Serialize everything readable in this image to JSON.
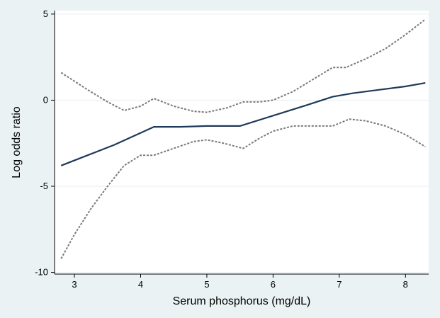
{
  "chart_data": {
    "type": "line",
    "title": "",
    "xlabel": "Serum phosphorus (mg/dL)",
    "ylabel": "Log odds ratio",
    "xlim": [
      2.7,
      8.35
    ],
    "ylim": [
      -10.1,
      5.2
    ],
    "xticks": [
      3,
      4,
      5,
      6,
      7,
      8
    ],
    "yticks": [
      5,
      0,
      -5,
      -10
    ],
    "xtick_labels": [
      "3",
      "4",
      "5",
      "6",
      "7",
      "8"
    ],
    "ytick_labels": [
      "5",
      "0",
      "-5",
      "-10"
    ],
    "grid": "horizontal",
    "legend": "none",
    "series": [
      {
        "role": "estimate",
        "color": "#1f3a5a",
        "style": "solid",
        "x": [
          2.8,
          3.2,
          3.6,
          4.0,
          4.2,
          4.6,
          5.0,
          5.5,
          6.0,
          6.5,
          6.9,
          7.2,
          7.6,
          8.0,
          8.3
        ],
        "y": [
          -3.8,
          -3.2,
          -2.6,
          -1.9,
          -1.55,
          -1.55,
          -1.5,
          -1.5,
          -0.9,
          -0.3,
          0.2,
          0.4,
          0.6,
          0.8,
          1.0
        ]
      },
      {
        "role": "upper-ci",
        "color": "#7a7a7a",
        "style": "dashed",
        "x": [
          2.8,
          3.2,
          3.5,
          3.75,
          4.0,
          4.2,
          4.5,
          4.8,
          5.0,
          5.3,
          5.55,
          5.8,
          6.0,
          6.3,
          6.6,
          6.9,
          7.1,
          7.4,
          7.7,
          8.0,
          8.3
        ],
        "y": [
          1.6,
          0.6,
          -0.1,
          -0.6,
          -0.35,
          0.1,
          -0.35,
          -0.65,
          -0.7,
          -0.45,
          -0.1,
          -0.1,
          0.0,
          0.5,
          1.2,
          1.9,
          1.9,
          2.4,
          3.0,
          3.8,
          4.7
        ]
      },
      {
        "role": "lower-ci",
        "color": "#7a7a7a",
        "style": "dashed",
        "x": [
          2.8,
          3.0,
          3.25,
          3.5,
          3.75,
          4.0,
          4.2,
          4.5,
          4.8,
          5.0,
          5.25,
          5.55,
          5.8,
          6.0,
          6.3,
          6.6,
          6.9,
          7.15,
          7.4,
          7.7,
          8.0,
          8.3
        ],
        "y": [
          -9.2,
          -7.8,
          -6.3,
          -5.0,
          -3.8,
          -3.2,
          -3.2,
          -2.8,
          -2.4,
          -2.3,
          -2.5,
          -2.8,
          -2.2,
          -1.8,
          -1.5,
          -1.5,
          -1.5,
          -1.1,
          -1.2,
          -1.5,
          -2.0,
          -2.7
        ]
      }
    ]
  }
}
